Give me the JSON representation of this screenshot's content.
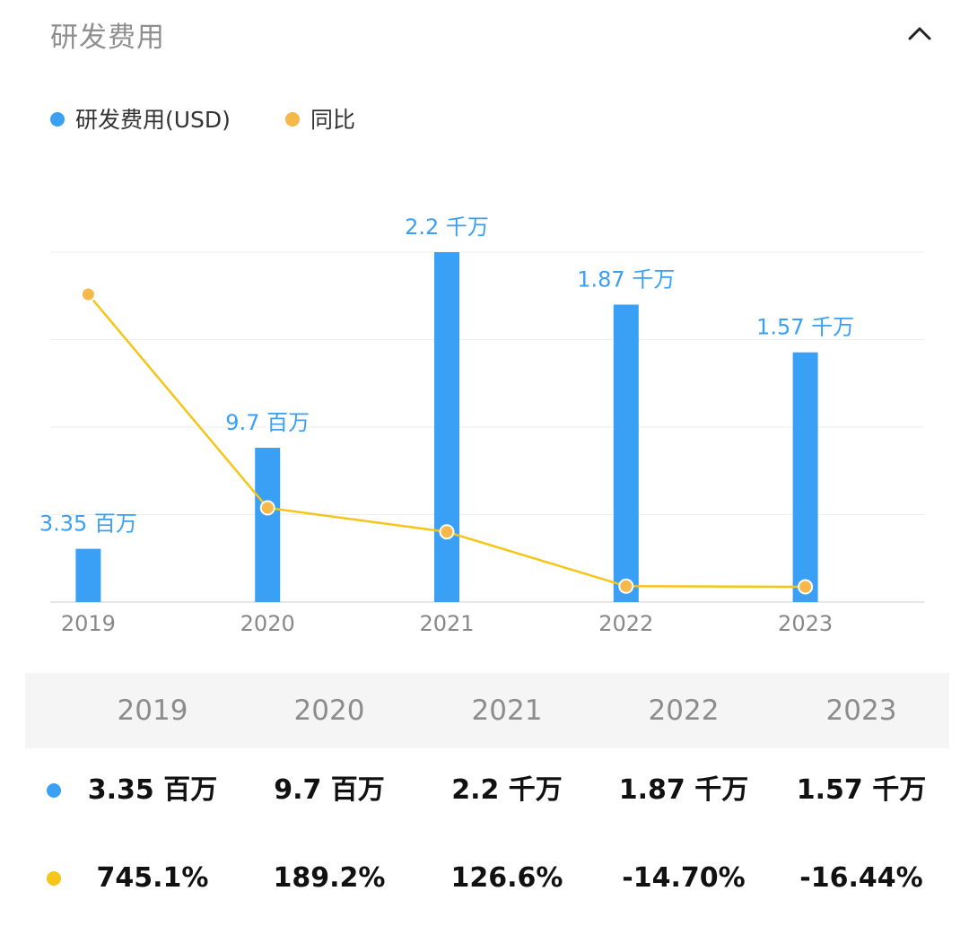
{
  "header": {
    "title": "研发费用",
    "collapse_icon": "chevron-up-icon"
  },
  "legend": [
    {
      "label": "研发费用(USD)",
      "color": "#3aa0f5"
    },
    {
      "label": "同比",
      "color": "#f7b84b"
    }
  ],
  "chart_data": {
    "type": "bar+line",
    "categories": [
      "2019",
      "2020",
      "2021",
      "2022",
      "2023"
    ],
    "series": [
      {
        "name": "研发费用(USD)",
        "type": "bar",
        "color": "#3aa0f5",
        "values": [
          3350000,
          9700000,
          22000000,
          18700000,
          15700000
        ],
        "labels": [
          "3.35 百万",
          "9.7 百万",
          "2.2 千万",
          "1.87 千万",
          "1.57 千万"
        ]
      },
      {
        "name": "同比",
        "type": "line",
        "color": "#f5c518",
        "marker_color": "#f7b84b",
        "values": [
          745.1,
          189.2,
          126.6,
          -14.7,
          -16.44
        ]
      }
    ],
    "grid": true,
    "legend_position": "top-left"
  },
  "table": {
    "headers": [
      "2019",
      "2020",
      "2021",
      "2022",
      "2023"
    ],
    "rows": [
      {
        "dot_color": "#3aa0f5",
        "values": [
          "3.35 百万",
          "9.7 百万",
          "2.2 千万",
          "1.87 千万",
          "1.57 千万"
        ]
      },
      {
        "dot_color": "#f5c518",
        "values": [
          "745.1%",
          "189.2%",
          "126.6%",
          "-14.70%",
          "-16.44%"
        ]
      }
    ]
  }
}
